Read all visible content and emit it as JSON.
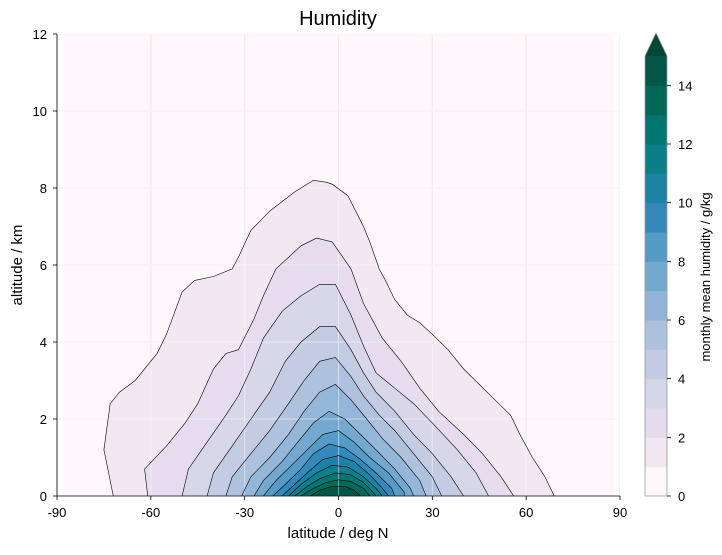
{
  "chart_data": {
    "type": "contour",
    "title": "Humidity",
    "xlabel": "latitude  /  deg N",
    "ylabel": "altitude  /  km",
    "xlim": [
      -90,
      90
    ],
    "ylim": [
      0,
      12
    ],
    "xticks": [
      -90,
      -60,
      -30,
      0,
      30,
      60,
      90
    ],
    "yticks": [
      0,
      2,
      4,
      6,
      8,
      10,
      12
    ],
    "grid": true,
    "colorbar": {
      "label": "monthly mean humidity  /  g/kg",
      "ticks": [
        0,
        2,
        4,
        6,
        8,
        10,
        12,
        14
      ],
      "levels": [
        0,
        1,
        2,
        3,
        4,
        5,
        6,
        7,
        8,
        9,
        10,
        11,
        12,
        13,
        14,
        15
      ],
      "extend": "max",
      "colormap": "PuBuGn",
      "colors": [
        "#fff7fb",
        "#f2e6f1",
        "#e6dbec",
        "#d6d6e9",
        "#c3cbe3",
        "#adc1dd",
        "#92b5d7",
        "#73a8cf",
        "#539ac5",
        "#3487b9",
        "#1d81a4",
        "#0a7f8a",
        "#017570",
        "#016858",
        "#015646",
        "#014636"
      ]
    },
    "contours": [
      {
        "level": 1,
        "points": [
          [
            -72,
            0
          ],
          [
            -75,
            1.2
          ],
          [
            -73,
            2.4
          ],
          [
            -70,
            2.7
          ],
          [
            -65,
            3.0
          ],
          [
            -58,
            3.7
          ],
          [
            -55,
            4.2
          ],
          [
            -50,
            5.3
          ],
          [
            -46,
            5.6
          ],
          [
            -40,
            5.7
          ],
          [
            -34,
            5.9
          ],
          [
            -32,
            6.2
          ],
          [
            -28,
            6.9
          ],
          [
            -22,
            7.4
          ],
          [
            -14,
            7.9
          ],
          [
            -8,
            8.2
          ],
          [
            -4,
            8.15
          ],
          [
            -2,
            8.1
          ],
          [
            3,
            7.8
          ],
          [
            8,
            7.0
          ],
          [
            10,
            6.6
          ],
          [
            13,
            5.9
          ],
          [
            15,
            5.6
          ],
          [
            18,
            5.1
          ],
          [
            22,
            4.7
          ],
          [
            26,
            4.5
          ],
          [
            30,
            4.2
          ],
          [
            35,
            3.8
          ],
          [
            40,
            3.3
          ],
          [
            45,
            2.9
          ],
          [
            50,
            2.5
          ],
          [
            55,
            2.1
          ],
          [
            58,
            1.6
          ],
          [
            62,
            1.0
          ],
          [
            66,
            0.5
          ],
          [
            69,
            0
          ]
        ]
      },
      {
        "level": 2,
        "points": [
          [
            -61,
            0
          ],
          [
            -62,
            0.7
          ],
          [
            -55,
            1.3
          ],
          [
            -49,
            1.9
          ],
          [
            -45,
            2.4
          ],
          [
            -40,
            3.3
          ],
          [
            -36,
            3.7
          ],
          [
            -32,
            3.8
          ],
          [
            -27,
            4.6
          ],
          [
            -24,
            5.2
          ],
          [
            -20,
            5.9
          ],
          [
            -16,
            6.2
          ],
          [
            -12,
            6.5
          ],
          [
            -7,
            6.7
          ],
          [
            -2,
            6.6
          ],
          [
            4,
            5.9
          ],
          [
            8,
            5.0
          ],
          [
            14,
            4.1
          ],
          [
            20,
            3.5
          ],
          [
            26,
            2.8
          ],
          [
            32,
            2.2
          ],
          [
            40,
            1.6
          ],
          [
            46,
            1.1
          ],
          [
            52,
            0.5
          ],
          [
            56,
            0
          ]
        ]
      },
      {
        "level": 3,
        "points": [
          [
            -50,
            0
          ],
          [
            -48,
            0.7
          ],
          [
            -42,
            1.4
          ],
          [
            -36,
            2.1
          ],
          [
            -32,
            2.6
          ],
          [
            -28,
            3.3
          ],
          [
            -24,
            4.1
          ],
          [
            -18,
            4.8
          ],
          [
            -12,
            5.2
          ],
          [
            -6,
            5.5
          ],
          [
            -1,
            5.5
          ],
          [
            4,
            4.7
          ],
          [
            8,
            3.9
          ],
          [
            12,
            3.2
          ],
          [
            18,
            2.8
          ],
          [
            24,
            2.4
          ],
          [
            30,
            1.9
          ],
          [
            38,
            1.2
          ],
          [
            44,
            0.6
          ],
          [
            48,
            0
          ]
        ]
      },
      {
        "level": 4,
        "points": [
          [
            -42,
            0
          ],
          [
            -40,
            0.6
          ],
          [
            -34,
            1.3
          ],
          [
            -28,
            2.0
          ],
          [
            -22,
            2.7
          ],
          [
            -17,
            3.5
          ],
          [
            -12,
            4.0
          ],
          [
            -6,
            4.4
          ],
          [
            -1,
            4.4
          ],
          [
            4,
            3.8
          ],
          [
            8,
            3.2
          ],
          [
            12,
            2.7
          ],
          [
            18,
            2.2
          ],
          [
            24,
            1.6
          ],
          [
            30,
            1.1
          ],
          [
            36,
            0.5
          ],
          [
            40,
            0
          ]
        ]
      },
      {
        "level": 5,
        "points": [
          [
            -36,
            0
          ],
          [
            -34,
            0.5
          ],
          [
            -28,
            1.1
          ],
          [
            -22,
            1.7
          ],
          [
            -16,
            2.4
          ],
          [
            -11,
            3.0
          ],
          [
            -6,
            3.5
          ],
          [
            -1,
            3.6
          ],
          [
            4,
            3.1
          ],
          [
            8,
            2.6
          ],
          [
            13,
            2.1
          ],
          [
            18,
            1.7
          ],
          [
            24,
            1.1
          ],
          [
            30,
            0.5
          ],
          [
            33,
            0
          ]
        ]
      },
      {
        "level": 6,
        "points": [
          [
            -31,
            0
          ],
          [
            -28,
            0.5
          ],
          [
            -22,
            1.0
          ],
          [
            -16,
            1.6
          ],
          [
            -11,
            2.2
          ],
          [
            -6,
            2.7
          ],
          [
            -1,
            2.9
          ],
          [
            4,
            2.5
          ],
          [
            9,
            2.0
          ],
          [
            14,
            1.5
          ],
          [
            20,
            1.0
          ],
          [
            26,
            0.4
          ],
          [
            28,
            0
          ]
        ]
      },
      {
        "level": 7,
        "points": [
          [
            -27,
            0
          ],
          [
            -24,
            0.4
          ],
          [
            -18,
            0.9
          ],
          [
            -13,
            1.4
          ],
          [
            -8,
            1.9
          ],
          [
            -3,
            2.2
          ],
          [
            2,
            2.0
          ],
          [
            7,
            1.6
          ],
          [
            12,
            1.2
          ],
          [
            18,
            0.7
          ],
          [
            23,
            0.2
          ],
          [
            24,
            0
          ]
        ]
      },
      {
        "level": 8,
        "points": [
          [
            -24,
            0
          ],
          [
            -20,
            0.4
          ],
          [
            -15,
            0.8
          ],
          [
            -10,
            1.2
          ],
          [
            -5,
            1.6
          ],
          [
            0,
            1.7
          ],
          [
            5,
            1.4
          ],
          [
            10,
            1.0
          ],
          [
            16,
            0.6
          ],
          [
            21,
            0.1
          ],
          [
            21,
            0
          ]
        ]
      },
      {
        "level": 9,
        "points": [
          [
            -21,
            0
          ],
          [
            -17,
            0.3
          ],
          [
            -12,
            0.7
          ],
          [
            -8,
            1.1
          ],
          [
            -3,
            1.35
          ],
          [
            2,
            1.25
          ],
          [
            7,
            0.95
          ],
          [
            12,
            0.6
          ],
          [
            17,
            0.2
          ],
          [
            18,
            0
          ]
        ]
      },
      {
        "level": 10,
        "points": [
          [
            -18,
            0
          ],
          [
            -14,
            0.3
          ],
          [
            -10,
            0.6
          ],
          [
            -5,
            0.95
          ],
          [
            0,
            1.05
          ],
          [
            5,
            0.9
          ],
          [
            10,
            0.55
          ],
          [
            14,
            0.2
          ],
          [
            16,
            0
          ]
        ]
      },
      {
        "level": 11,
        "points": [
          [
            -16,
            0
          ],
          [
            -12,
            0.3
          ],
          [
            -7,
            0.6
          ],
          [
            -2,
            0.8
          ],
          [
            3,
            0.75
          ],
          [
            8,
            0.5
          ],
          [
            12,
            0.2
          ],
          [
            14,
            0
          ]
        ]
      },
      {
        "level": 12,
        "points": [
          [
            -14,
            0
          ],
          [
            -10,
            0.25
          ],
          [
            -6,
            0.45
          ],
          [
            -1,
            0.6
          ],
          [
            4,
            0.55
          ],
          [
            8,
            0.35
          ],
          [
            11,
            0.1
          ],
          [
            12,
            0
          ]
        ]
      },
      {
        "level": 13,
        "points": [
          [
            -12,
            0
          ],
          [
            -8,
            0.2
          ],
          [
            -4,
            0.35
          ],
          [
            0,
            0.42
          ],
          [
            4,
            0.38
          ],
          [
            8,
            0.2
          ],
          [
            10,
            0
          ]
        ]
      },
      {
        "level": 14,
        "points": [
          [
            -9,
            0
          ],
          [
            -6,
            0.15
          ],
          [
            -2,
            0.25
          ],
          [
            2,
            0.25
          ],
          [
            5,
            0.15
          ],
          [
            7,
            0
          ]
        ]
      }
    ]
  }
}
